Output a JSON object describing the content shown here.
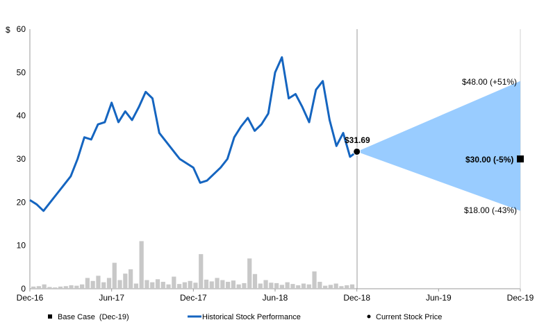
{
  "chart_data": {
    "type": "line",
    "y_axis": {
      "unit_label": "$",
      "min": 0,
      "max": 60,
      "ticks": [
        "0",
        "10",
        "20",
        "30",
        "40",
        "50",
        "60"
      ]
    },
    "x_axis": {
      "ticks": [
        "Dec-16",
        "Jun-17",
        "Dec-17",
        "Jun-18",
        "Dec-18",
        "Jun-19",
        "Dec-19"
      ],
      "range": [
        "Dec-16",
        "Dec-19"
      ]
    },
    "gridlines": false,
    "legend_position": "bottom",
    "series": [
      {
        "name": "Historical Stock Performance",
        "color": "#1565c0",
        "x": [
          "Dec-16",
          "Dec-16",
          "Jan-17",
          "Jan-17",
          "Feb-17",
          "Feb-17",
          "Mar-17",
          "Mar-17",
          "Apr-17",
          "Apr-17",
          "May-17",
          "May-17",
          "Jun-17",
          "Jun-17",
          "Jul-17",
          "Jul-17",
          "Aug-17",
          "Aug-17",
          "Sep-17",
          "Sep-17",
          "Oct-17",
          "Oct-17",
          "Nov-17",
          "Nov-17",
          "Dec-17",
          "Dec-17",
          "Jan-18",
          "Jan-18",
          "Feb-18",
          "Feb-18",
          "Mar-18",
          "Mar-18",
          "Apr-18",
          "Apr-18",
          "May-18",
          "May-18",
          "Jun-18",
          "Jun-18",
          "Jul-18",
          "Jul-18",
          "Aug-18",
          "Aug-18",
          "Sep-18",
          "Sep-18",
          "Oct-18",
          "Oct-18",
          "Nov-18",
          "Nov-18",
          "Dec-18"
        ],
        "values": [
          20.5,
          19.5,
          18.0,
          20.0,
          22.0,
          24.0,
          26.0,
          30.0,
          35.0,
          34.5,
          38.0,
          38.5,
          43.0,
          38.5,
          41.0,
          39.0,
          42.0,
          45.5,
          44.0,
          36.0,
          34.0,
          32.0,
          30.0,
          29.0,
          28.0,
          24.5,
          25.0,
          26.5,
          28.0,
          30.0,
          35.0,
          37.5,
          39.5,
          36.5,
          38.0,
          40.5,
          50.0,
          53.5,
          44.0,
          45.0,
          42.0,
          38.5,
          46.0,
          48.0,
          39.0,
          33.0,
          36.0,
          30.5,
          31.69
        ]
      },
      {
        "name": "Trading Volume",
        "color": "#c8c8c8",
        "values": [
          0.5,
          0.6,
          1.0,
          0.4,
          0.3,
          0.5,
          0.6,
          0.8,
          0.7,
          1.0,
          2.5,
          1.8,
          3.0,
          1.5,
          2.5,
          6.0,
          2.0,
          3.5,
          4.5,
          1.2,
          11.0,
          2.0,
          1.5,
          2.2,
          1.6,
          1.0,
          2.8,
          1.1,
          1.5,
          1.8,
          1.4,
          8.0,
          2.1,
          1.7,
          2.5,
          2.0,
          1.6,
          1.9,
          1.0,
          1.3,
          7.0,
          3.4,
          1.2,
          2.0,
          1.4,
          1.3,
          0.9,
          1.5,
          1.1,
          0.8,
          1.2,
          1.0,
          4.0,
          1.6,
          0.7,
          0.9,
          1.2,
          0.6,
          0.8,
          1.0
        ]
      },
      {
        "name": "Base Case (Dec-19)",
        "points": [
          {
            "x": "Dec-19",
            "y": 30.0
          }
        ]
      },
      {
        "name": "Current Stock Price",
        "points": [
          {
            "x": "Dec-18",
            "y": 31.69
          }
        ]
      }
    ],
    "projection_range": {
      "from": {
        "x": "Dec-18",
        "y": 31.69
      },
      "to_x": "Dec-19",
      "high": 48.0,
      "base": 30.0,
      "low": 18.0,
      "color": "#99ccff"
    },
    "annotations": {
      "current_price": "$31.69",
      "high": "$48.00 (+51%)",
      "base": "$30.00 (-5%)",
      "low": "$18.00 (-43%)"
    },
    "legend": [
      {
        "label": "Base Case  (Dec-19)",
        "marker": "square",
        "color": "#000000"
      },
      {
        "label": "Historical Stock Performance",
        "marker": "line",
        "color": "#1565c0"
      },
      {
        "label": "Current Stock Price",
        "marker": "dot",
        "color": "#000000"
      }
    ]
  }
}
